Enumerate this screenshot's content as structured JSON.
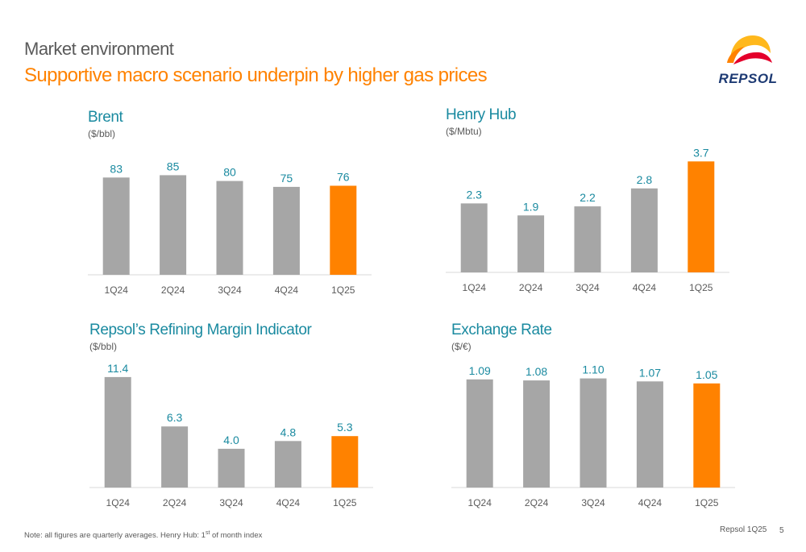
{
  "header": {
    "kicker": "Market environment",
    "headline": "Supportive macro scenario underpin by higher gas prices"
  },
  "logo": {
    "wordmark": "REPSOL"
  },
  "colors": {
    "bar": "#a6a6a6",
    "highlight": "#ff8200",
    "value": "#1a8aa0",
    "tick": "#5a5a5a",
    "axis": "#d9d9d9"
  },
  "chart_data": [
    {
      "type": "bar",
      "title": "Brent",
      "unit": "($/bbl)",
      "categories": [
        "1Q24",
        "2Q24",
        "3Q24",
        "4Q24",
        "1Q25"
      ],
      "values": [
        83,
        85,
        80,
        75,
        76
      ],
      "value_labels": [
        "83",
        "85",
        "80",
        "75",
        "76"
      ],
      "highlight_index": 4,
      "ylim": [
        0,
        110
      ]
    },
    {
      "type": "bar",
      "title": "Henry Hub",
      "unit": "($/Mbtu)",
      "categories": [
        "1Q24",
        "2Q24",
        "3Q24",
        "4Q24",
        "1Q25"
      ],
      "values": [
        2.3,
        1.9,
        2.2,
        2.8,
        3.7
      ],
      "value_labels": [
        "2.3",
        "1.9",
        "2.2",
        "2.8",
        "3.7"
      ],
      "highlight_index": 4,
      "ylim": [
        0,
        4.3
      ]
    },
    {
      "type": "bar",
      "title": "Repsol’s Refining Margin Indicator",
      "unit": "($/bbl)",
      "categories": [
        "1Q24",
        "2Q24",
        "3Q24",
        "4Q24",
        "1Q25"
      ],
      "values": [
        11.4,
        6.3,
        4.0,
        4.8,
        5.3
      ],
      "value_labels": [
        "11.4",
        "6.3",
        "4.0",
        "4.8",
        "5.3"
      ],
      "highlight_index": 4,
      "ylim": [
        0,
        13.3
      ]
    },
    {
      "type": "bar",
      "title": "Exchange Rate",
      "unit": "($/€)",
      "categories": [
        "1Q24",
        "2Q24",
        "3Q24",
        "4Q24",
        "1Q25"
      ],
      "values": [
        1.09,
        1.08,
        1.1,
        1.07,
        1.05
      ],
      "value_labels": [
        "1.09",
        "1.08",
        "1.10",
        "1.07",
        "1.05"
      ],
      "highlight_index": 4,
      "ylim": [
        0,
        1.3
      ]
    }
  ],
  "footer": {
    "note_main": "Note: all figures are quarterly averages. Henry Hub: 1",
    "note_sup": "st",
    "note_tail": " of month index",
    "doc_label": "Repsol 1Q25",
    "page_number": "5"
  }
}
